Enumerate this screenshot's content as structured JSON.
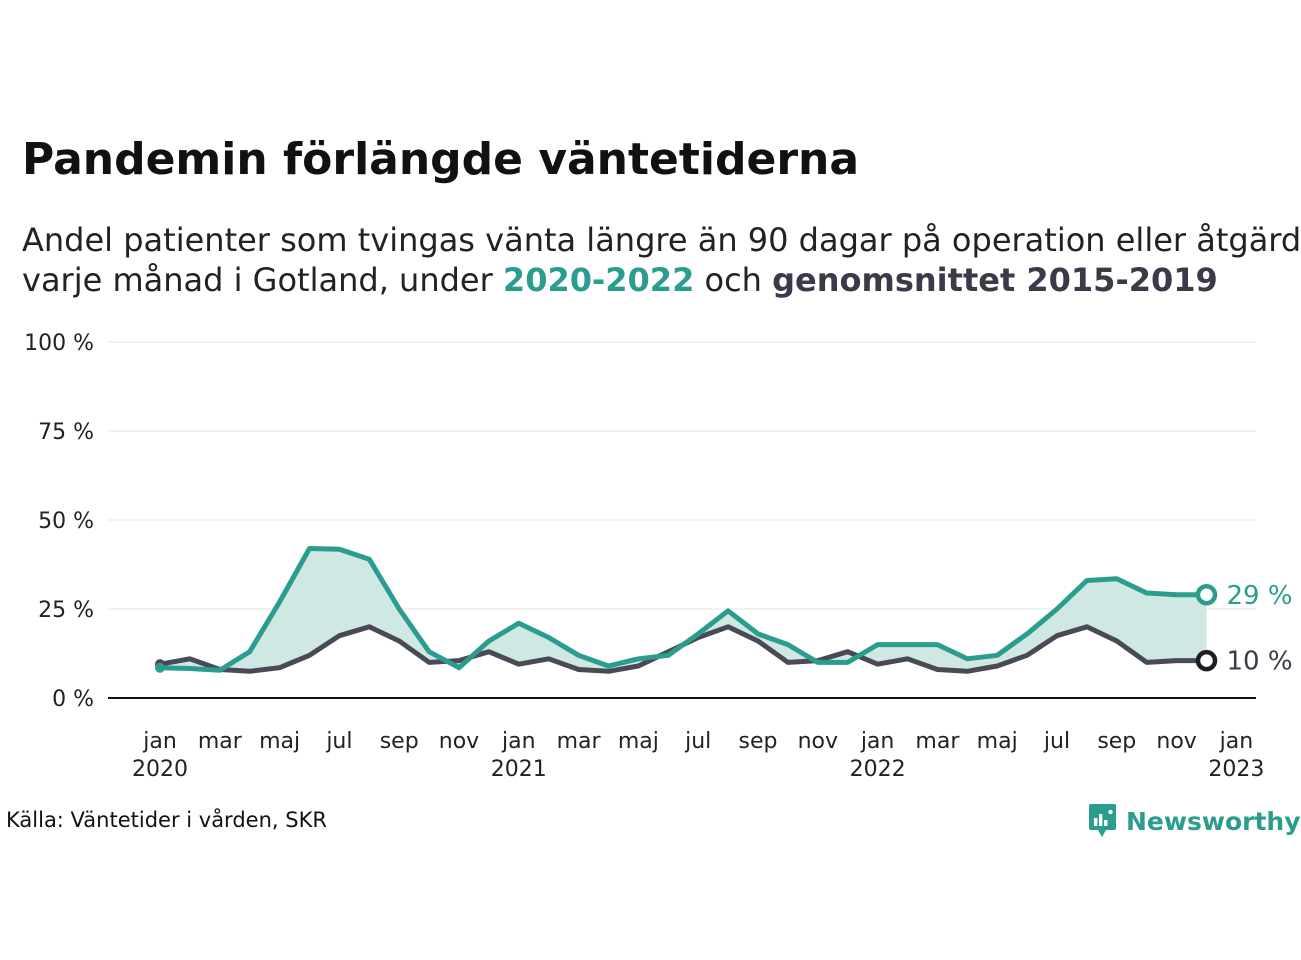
{
  "header": {
    "title": "Pandemin förlängde väntetiderna",
    "subtitle_line1": "Andel patienter som tvingas vänta längre än 90 dagar på operation eller åtgärd",
    "subtitle_line2_pre": "varje månad i Gotland, under ",
    "subtitle_highlight_a": "2020-2022",
    "subtitle_mid": " och ",
    "subtitle_highlight_b": "genomsnittet 2015-2019"
  },
  "footer": {
    "source": "Källa: Väntetider i vården, SKR",
    "brand": "Newsworthy"
  },
  "colors": {
    "current": "#2a9d8f",
    "average": "#4a4956",
    "fill": "#cfe8e3",
    "grid": "#e6e6e6",
    "axis": "#111111"
  },
  "chart_data": {
    "type": "line",
    "title": "Pandemin förlängde väntetiderna",
    "x_unit": "month index (0 = jan 2020)",
    "x": [
      0,
      1,
      2,
      3,
      4,
      5,
      6,
      7,
      8,
      9,
      10,
      11,
      12,
      13,
      14,
      15,
      16,
      17,
      18,
      19,
      20,
      21,
      22,
      23,
      24,
      25,
      26,
      27,
      28,
      29,
      30,
      31,
      32,
      33,
      34,
      35
    ],
    "series": [
      {
        "name": "2020-2022",
        "color": "#2a9d8f",
        "values": [
          8.5,
          8.3,
          7.8,
          13,
          27,
          42,
          41.8,
          39,
          25,
          13,
          8.5,
          16,
          21,
          17,
          12,
          9,
          11,
          12,
          18,
          24.5,
          18,
          15,
          10,
          10,
          15,
          15,
          15,
          11,
          12,
          18,
          25,
          33,
          33.5,
          29.5,
          29,
          29
        ]
      },
      {
        "name": "genomsnittet 2015-2019",
        "color": "#4a4956",
        "values": [
          9.5,
          11,
          8,
          7.5,
          8.5,
          12,
          17.5,
          20,
          16,
          10,
          10.5,
          13,
          9.5,
          11,
          8,
          7.5,
          9,
          13,
          17,
          20,
          16,
          10,
          10.5,
          13,
          9.5,
          11,
          8,
          7.5,
          9,
          12,
          17.5,
          20,
          16,
          10,
          10.5,
          10.5
        ]
      }
    ],
    "end_labels": [
      "29 %",
      "10 %"
    ],
    "ylim": [
      0,
      100
    ],
    "y_ticks": [
      0,
      25,
      50,
      75,
      100
    ],
    "y_tick_labels": [
      "0 %",
      "25 %",
      "50 %",
      "75 %",
      "100 %"
    ],
    "x_ticks": [
      0,
      2,
      4,
      6,
      8,
      10,
      12,
      14,
      16,
      18,
      20,
      22,
      24,
      26,
      28,
      30,
      32,
      34,
      36
    ],
    "x_tick_labels": [
      "jan",
      "mar",
      "maj",
      "jul",
      "sep",
      "nov",
      "jan",
      "mar",
      "maj",
      "jul",
      "sep",
      "nov",
      "jan",
      "mar",
      "maj",
      "jul",
      "sep",
      "nov",
      "jan"
    ],
    "x_year_labels": [
      {
        "at": 0,
        "label": "2020"
      },
      {
        "at": 12,
        "label": "2021"
      },
      {
        "at": 24,
        "label": "2022"
      },
      {
        "at": 36,
        "label": "2023"
      }
    ],
    "grid": true,
    "xlabel": "",
    "ylabel": ""
  }
}
